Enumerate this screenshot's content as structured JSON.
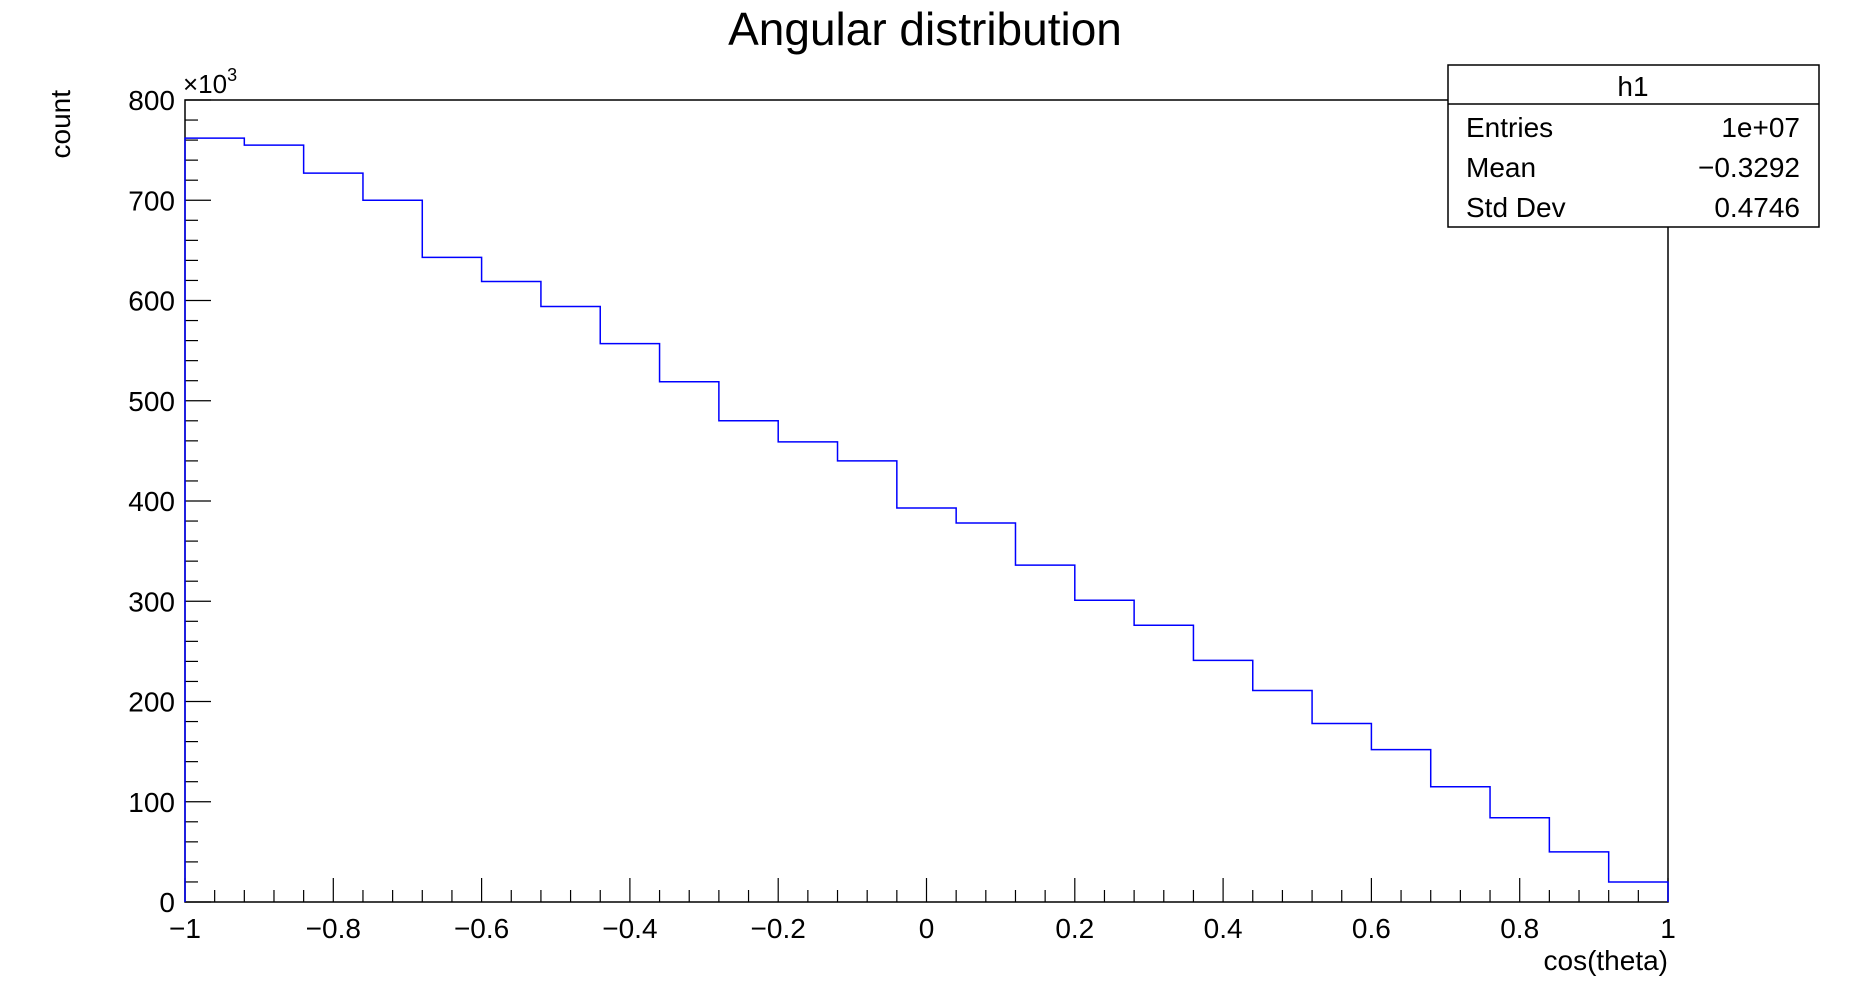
{
  "chart_data": {
    "type": "histogram",
    "title": "Angular distribution",
    "xlabel": "cos(theta)",
    "ylabel": "count",
    "y_multiplier_label": "×10",
    "y_multiplier_exponent": "3",
    "xlim": [
      -1,
      1
    ],
    "ylim": [
      0,
      800
    ],
    "x_ticks": [
      "−1",
      "−0.8",
      "−0.6",
      "−0.4",
      "−0.2",
      "0",
      "0.2",
      "0.4",
      "0.6",
      "0.8",
      "1"
    ],
    "y_ticks": [
      "0",
      "100",
      "200",
      "300",
      "400",
      "500",
      "600",
      "700",
      "800"
    ],
    "bin_edges": [
      -1,
      -0.92,
      -0.84,
      -0.76,
      -0.68,
      -0.6,
      -0.52,
      -0.44,
      -0.36,
      -0.28,
      -0.2,
      -0.12,
      -0.04,
      0.04,
      0.12,
      0.2,
      0.28,
      0.36,
      0.44,
      0.52,
      0.6,
      0.68,
      0.76,
      0.84,
      0.92,
      1
    ],
    "values": [
      762,
      755,
      727,
      700,
      643,
      619,
      594,
      557,
      519,
      480,
      459,
      440,
      393,
      378,
      336,
      301,
      276,
      241,
      211,
      178,
      152,
      115,
      84,
      50,
      20
    ],
    "line_color": "#0000ff",
    "grid": false,
    "legend": "top-right"
  },
  "stats": {
    "name": "h1",
    "rows": [
      {
        "label": "Entries",
        "value": "1e+07"
      },
      {
        "label": "Mean",
        "value": "−0.3292"
      },
      {
        "label": "Std Dev",
        "value": "0.4746"
      }
    ]
  }
}
